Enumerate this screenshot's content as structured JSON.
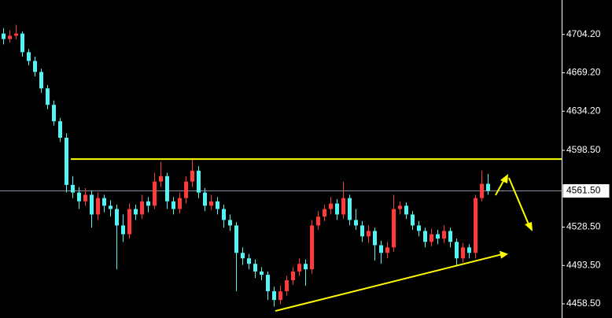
{
  "chart_data": {
    "type": "candlestick",
    "up_color": "#ff3b3b",
    "down_color": "#54f4f4",
    "ylim": [
      4445.6,
      4735.6
    ],
    "yticks": [
      {
        "value": 4704.2,
        "label": "4704.20"
      },
      {
        "value": 4669.2,
        "label": "4669.20"
      },
      {
        "value": 4634.2,
        "label": "4634.20"
      },
      {
        "value": 4598.5,
        "label": "4598.50"
      },
      {
        "value": 4528.5,
        "label": "4528.50"
      },
      {
        "value": 4493.5,
        "label": "4493.50"
      },
      {
        "value": 4458.5,
        "label": "4458.50"
      }
    ],
    "last_price": {
      "value": 4561.5,
      "label": "4561.50"
    },
    "resistance": 4590.5,
    "trendline": [
      4452,
      4504
    ],
    "annotation_color": "#ffff00",
    "ohlc": [
      [
        4705,
        4710,
        4695,
        4700
      ],
      [
        4700,
        4708,
        4697,
        4703
      ],
      [
        4703,
        4713,
        4700,
        4705
      ],
      [
        4705,
        4707,
        4684,
        4688
      ],
      [
        4688,
        4691,
        4676,
        4680
      ],
      [
        4680,
        4684,
        4666,
        4670
      ],
      [
        4670,
        4673,
        4651,
        4655
      ],
      [
        4655,
        4658,
        4636,
        4640
      ],
      [
        4640,
        4644,
        4621,
        4625
      ],
      [
        4625,
        4628,
        4606,
        4610
      ],
      [
        4610,
        4614,
        4560,
        4567
      ],
      [
        4567,
        4575,
        4555,
        4560
      ],
      [
        4560,
        4565,
        4545,
        4552
      ],
      [
        4552,
        4564,
        4548,
        4558
      ],
      [
        4558,
        4562,
        4528,
        4540
      ],
      [
        4540,
        4560,
        4535,
        4555
      ],
      [
        4555,
        4558,
        4542,
        4548
      ],
      [
        4548,
        4553,
        4538,
        4545
      ],
      [
        4545,
        4549,
        4490,
        4530
      ],
      [
        4530,
        4540,
        4515,
        4522
      ],
      [
        4522,
        4550,
        4518,
        4545
      ],
      [
        4545,
        4549,
        4535,
        4540
      ],
      [
        4540,
        4558,
        4536,
        4552
      ],
      [
        4552,
        4556,
        4542,
        4548
      ],
      [
        4548,
        4578,
        4545,
        4570
      ],
      [
        4570,
        4588,
        4565,
        4575
      ],
      [
        4575,
        4578,
        4545,
        4552
      ],
      [
        4552,
        4556,
        4540,
        4545
      ],
      [
        4545,
        4560,
        4541,
        4555
      ],
      [
        4555,
        4575,
        4550,
        4570
      ],
      [
        4570,
        4590,
        4565,
        4580
      ],
      [
        4580,
        4584,
        4555,
        4560
      ],
      [
        4560,
        4564,
        4543,
        4548
      ],
      [
        4548,
        4558,
        4544,
        4552
      ],
      [
        4552,
        4556,
        4540,
        4545
      ],
      [
        4545,
        4549,
        4528,
        4535
      ],
      [
        4535,
        4540,
        4525,
        4530
      ],
      [
        4530,
        4533,
        4470,
        4505
      ],
      [
        4505,
        4510,
        4494,
        4500
      ],
      [
        4500,
        4504,
        4490,
        4495
      ],
      [
        4495,
        4499,
        4482,
        4488
      ],
      [
        4488,
        4492,
        4480,
        4485
      ],
      [
        4485,
        4488,
        4462,
        4470
      ],
      [
        4470,
        4474,
        4456,
        4462
      ],
      [
        4462,
        4475,
        4458,
        4470
      ],
      [
        4470,
        4484,
        4466,
        4480
      ],
      [
        4480,
        4492,
        4476,
        4488
      ],
      [
        4488,
        4500,
        4484,
        4495
      ],
      [
        4495,
        4499,
        4475,
        4490
      ],
      [
        4490,
        4535,
        4486,
        4530
      ],
      [
        4530,
        4543,
        4526,
        4538
      ],
      [
        4538,
        4549,
        4534,
        4545
      ],
      [
        4545,
        4556,
        4540,
        4550
      ],
      [
        4550,
        4554,
        4535,
        4540
      ],
      [
        4540,
        4570,
        4536,
        4555
      ],
      [
        4555,
        4558,
        4530,
        4535
      ],
      [
        4535,
        4545,
        4526,
        4530
      ],
      [
        4530,
        4534,
        4515,
        4520
      ],
      [
        4520,
        4530,
        4514,
        4525
      ],
      [
        4525,
        4528,
        4498,
        4512
      ],
      [
        4512,
        4516,
        4495,
        4505
      ],
      [
        4505,
        4515,
        4500,
        4510
      ],
      [
        4510,
        4558,
        4506,
        4545
      ],
      [
        4545,
        4552,
        4540,
        4548
      ],
      [
        4548,
        4551,
        4536,
        4540
      ],
      [
        4540,
        4543,
        4526,
        4530
      ],
      [
        4530,
        4534,
        4520,
        4525
      ],
      [
        4525,
        4528,
        4510,
        4515
      ],
      [
        4515,
        4527,
        4511,
        4522
      ],
      [
        4522,
        4526,
        4513,
        4518
      ],
      [
        4518,
        4530,
        4514,
        4525
      ],
      [
        4525,
        4528,
        4510,
        4515
      ],
      [
        4515,
        4518,
        4494,
        4500
      ],
      [
        4500,
        4514,
        4496,
        4510
      ],
      [
        4510,
        4513,
        4500,
        4505
      ],
      [
        4505,
        4558,
        4500,
        4555
      ],
      [
        4555,
        4580,
        4552,
        4568
      ],
      [
        4568,
        4577,
        4558,
        4561.5
      ]
    ]
  }
}
